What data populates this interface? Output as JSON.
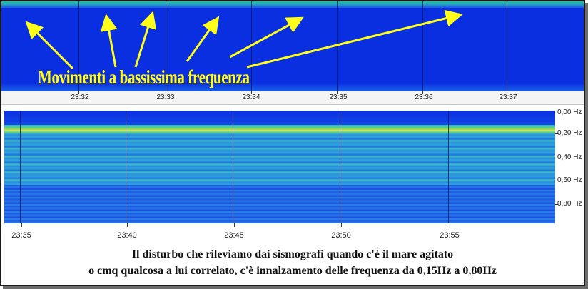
{
  "annotation": {
    "text": "Movimenti a bassissima frequenza",
    "color": "#ffff1a"
  },
  "top_spectrogram": {
    "time_labels": [
      "23:32",
      "23:33",
      "23:34",
      "23:35",
      "23:36",
      "23:37"
    ]
  },
  "bottom_spectrogram": {
    "time_labels": [
      "23:35",
      "23:40",
      "23:45",
      "23:50",
      "23:55"
    ],
    "freq_labels": [
      "0,00 Hz",
      "0,20 Hz",
      "0,40 Hz",
      "0,60 Hz",
      "0,80 Hz"
    ]
  },
  "caption": {
    "line1": "Il disturbo che rileviamo dai sismografi quando c'è il mare agitato",
    "line2": "o cmq qualcosa a lui correlato, c'è innalzamento delle frequenza da 0,15Hz a 0,80Hz"
  },
  "colors": {
    "background_blue": "#0a2fe0",
    "band_green": "#1fbf9a",
    "band_yellow": "#e0e040"
  }
}
